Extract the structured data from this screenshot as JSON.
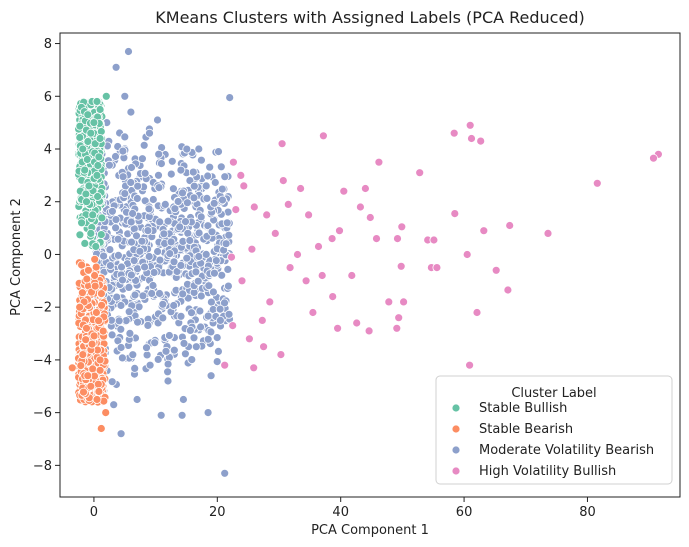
{
  "chart_data": {
    "type": "scatter",
    "title": "KMeans Clusters with Assigned Labels (PCA Reduced)",
    "xlabel": "PCA Component 1",
    "ylabel": "PCA Component 2",
    "xlim": [
      -5.5,
      95
    ],
    "ylim": [
      -9.2,
      8.4
    ],
    "xticks": [
      0,
      20,
      40,
      60,
      80
    ],
    "yticks": [
      -8,
      -6,
      -4,
      -2,
      0,
      2,
      4,
      6,
      8
    ],
    "legend": {
      "title": "Cluster Label",
      "placement": "lower-right"
    },
    "grid": false,
    "series": [
      {
        "name": "Stable Bullish",
        "color": "#66c2a5",
        "core": {
          "x_range": [
            -2.5,
            1.3
          ],
          "y_range": [
            0,
            5.8
          ]
        },
        "points": [
          [
            -0.3,
            5.8
          ],
          [
            0.5,
            5.8
          ],
          [
            2.0,
            6.0
          ],
          [
            -1.0,
            5.3
          ],
          [
            0.0,
            5.0
          ],
          [
            1.0,
            5.5
          ],
          [
            -0.5,
            4.6
          ],
          [
            0.2,
            4.2
          ],
          [
            0.8,
            3.7
          ],
          [
            -1.5,
            3.2
          ],
          [
            -0.8,
            2.6
          ],
          [
            0.5,
            3.0
          ],
          [
            -1.2,
            2.0
          ],
          [
            -0.2,
            1.5
          ],
          [
            -2.0,
            1.2
          ],
          [
            0.6,
            2.2
          ],
          [
            -0.5,
            0.8
          ],
          [
            0.3,
            0.3
          ],
          [
            1.0,
            4.4
          ],
          [
            -1.8,
            4.0
          ]
        ]
      },
      {
        "name": "Stable Bearish",
        "color": "#fc8d62",
        "core": {
          "x_range": [
            -2.5,
            1.8
          ],
          "y_range": [
            -5.6,
            0
          ]
        },
        "points": [
          [
            1.2,
            -6.6
          ],
          [
            1.9,
            -6.0
          ],
          [
            0.5,
            -5.5
          ],
          [
            -0.5,
            -5.0
          ],
          [
            -1.5,
            -4.6
          ],
          [
            -3.5,
            -4.3
          ],
          [
            -1.8,
            -3.8
          ],
          [
            -0.3,
            -3.4
          ],
          [
            -1.2,
            -2.8
          ],
          [
            0.4,
            -2.2
          ],
          [
            -1.6,
            -1.8
          ],
          [
            0.2,
            -1.2
          ],
          [
            -0.9,
            -0.6
          ],
          [
            1.0,
            -4.0
          ],
          [
            -2.3,
            -2.0
          ],
          [
            0.8,
            -5.2
          ],
          [
            -1.0,
            -4.6
          ],
          [
            -2.0,
            -0.4
          ]
        ]
      },
      {
        "name": "Moderate Volatility Bearish",
        "color": "#8da0cb",
        "core": {
          "x_range": [
            0.3,
            22.0
          ],
          "y_range": [
            -5.5,
            5.5
          ]
        },
        "points": [
          [
            5.6,
            7.7
          ],
          [
            3.6,
            7.1
          ],
          [
            5.0,
            6.0
          ],
          [
            22.0,
            5.95
          ],
          [
            6.0,
            5.4
          ],
          [
            10.3,
            5.1
          ],
          [
            4.4,
            -6.8
          ],
          [
            10.9,
            -6.1
          ],
          [
            14.3,
            -6.1
          ],
          [
            18.5,
            -6.0
          ],
          [
            21.2,
            -8.3
          ],
          [
            7.0,
            -5.5
          ],
          [
            3.2,
            -5.7
          ],
          [
            14.5,
            -5.5
          ],
          [
            19.0,
            -4.6
          ],
          [
            20.2,
            3.9
          ],
          [
            17.0,
            4.0
          ],
          [
            21.6,
            1.2
          ],
          [
            21.8,
            -1.2
          ],
          [
            20.5,
            -2.5
          ],
          [
            16.6,
            -3.5
          ],
          [
            12.0,
            -4.8
          ],
          [
            9.0,
            4.6
          ]
        ]
      },
      {
        "name": "High Volatility Bullish",
        "color": "#e78ac3",
        "points": [
          [
            91.5,
            3.8
          ],
          [
            90.7,
            3.65
          ],
          [
            81.6,
            2.7
          ],
          [
            61.0,
            4.9
          ],
          [
            61.2,
            4.4
          ],
          [
            62.7,
            4.3
          ],
          [
            58.4,
            4.6
          ],
          [
            46.2,
            3.5
          ],
          [
            52.8,
            3.1
          ],
          [
            37.2,
            4.5
          ],
          [
            30.5,
            4.2
          ],
          [
            33.5,
            2.5
          ],
          [
            40.5,
            2.4
          ],
          [
            44.0,
            2.5
          ],
          [
            58.5,
            1.55
          ],
          [
            67.4,
            1.1
          ],
          [
            73.6,
            0.8
          ],
          [
            63.2,
            0.9
          ],
          [
            60.5,
            0.0
          ],
          [
            65.2,
            -0.6
          ],
          [
            67.1,
            -1.35
          ],
          [
            62.1,
            -2.2
          ],
          [
            60.9,
            -4.2
          ],
          [
            49.9,
            1.05
          ],
          [
            54.1,
            0.55
          ],
          [
            55.1,
            0.55
          ],
          [
            45.8,
            0.6
          ],
          [
            49.2,
            0.6
          ],
          [
            54.7,
            -0.5
          ],
          [
            55.6,
            -0.5
          ],
          [
            49.8,
            -0.45
          ],
          [
            41.8,
            -0.8
          ],
          [
            37.0,
            -0.8
          ],
          [
            34.4,
            -1.0
          ],
          [
            47.8,
            -1.8
          ],
          [
            50.2,
            -1.8
          ],
          [
            49.4,
            -2.4
          ],
          [
            49.1,
            -2.8
          ],
          [
            44.6,
            -2.9
          ],
          [
            42.6,
            -2.6
          ],
          [
            38.7,
            -1.6
          ],
          [
            39.5,
            -2.8
          ],
          [
            30.3,
            -3.8
          ],
          [
            31.5,
            1.9
          ],
          [
            36.4,
            0.3
          ],
          [
            38.6,
            0.6
          ],
          [
            28.0,
            1.5
          ],
          [
            30.7,
            2.8
          ],
          [
            25.9,
            -4.3
          ],
          [
            21.2,
            -4.2
          ],
          [
            22.6,
            3.5
          ],
          [
            24.3,
            2.6
          ],
          [
            26.0,
            1.8
          ],
          [
            29.4,
            0.8
          ],
          [
            27.3,
            -2.5
          ],
          [
            31.8,
            -0.5
          ],
          [
            24.0,
            -1.0
          ],
          [
            28.5,
            -1.8
          ],
          [
            33.0,
            0.0
          ],
          [
            25.6,
            0.2
          ],
          [
            23.0,
            1.7
          ],
          [
            22.3,
            -0.1
          ],
          [
            25.2,
            -3.2
          ],
          [
            27.5,
            -3.5
          ],
          [
            35.5,
            -2.2
          ],
          [
            43.2,
            1.8
          ],
          [
            39.8,
            0.9
          ],
          [
            44.8,
            1.4
          ],
          [
            34.8,
            1.5
          ],
          [
            23.8,
            3.0
          ],
          [
            22.5,
            -2.7
          ]
        ]
      }
    ]
  }
}
